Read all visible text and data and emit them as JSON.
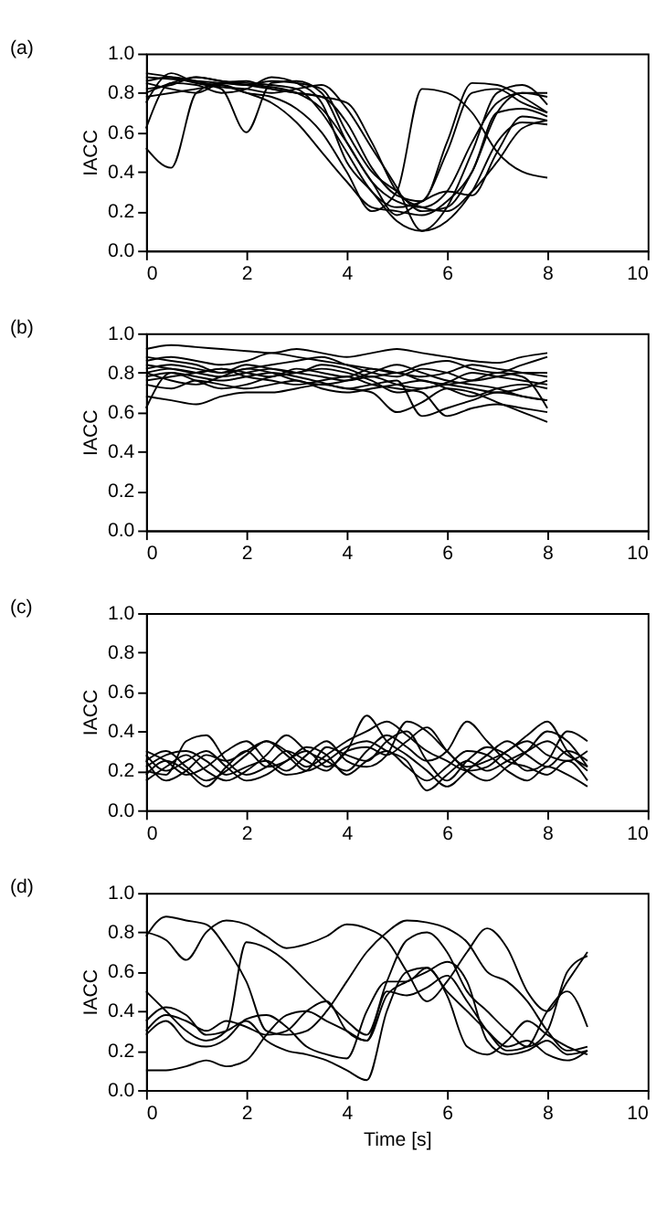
{
  "chart_data": [
    {
      "type": "line",
      "title": "(a)",
      "ylabel": "IACC",
      "xlim": [
        0,
        10
      ],
      "xticks": [
        0,
        2,
        4,
        6,
        8,
        10
      ],
      "ylim": [
        0,
        1
      ],
      "yticks": [
        {
          "value": 0,
          "label": "0.0"
        },
        {
          "value": 0.2,
          "label": "0.2"
        },
        {
          "value": 0.4,
          "label": "0.4"
        },
        {
          "value": 0.6,
          "label": "0.6"
        },
        {
          "value": 0.8,
          "label": "0.8"
        },
        {
          "value": 1,
          "label": "1.0"
        }
      ],
      "grid": false,
      "line_style": "solid",
      "x": [
        0,
        0.5,
        1,
        1.5,
        2,
        2.5,
        3,
        3.5,
        4,
        4.5,
        5,
        5.5,
        6,
        6.5,
        7,
        7.5,
        8
      ],
      "series": [
        {
          "color": "#000000",
          "values": [
            0.88,
            0.87,
            0.86,
            0.85,
            0.84,
            0.83,
            0.8,
            0.72,
            0.55,
            0.35,
            0.25,
            0.22,
            0.3,
            0.55,
            0.75,
            0.8,
            0.78
          ]
        },
        {
          "color": "#000000",
          "values": [
            0.8,
            0.85,
            0.88,
            0.86,
            0.85,
            0.84,
            0.82,
            0.7,
            0.5,
            0.3,
            0.22,
            0.25,
            0.5,
            0.8,
            0.82,
            0.75,
            0.7
          ]
        },
        {
          "color": "#000000",
          "values": [
            0.52,
            0.42,
            0.8,
            0.85,
            0.84,
            0.86,
            0.85,
            0.82,
            0.6,
            0.4,
            0.3,
            0.2,
            0.22,
            0.4,
            0.7,
            0.8,
            0.8
          ]
        },
        {
          "color": "#000000",
          "values": [
            0.75,
            0.9,
            0.85,
            0.82,
            0.6,
            0.85,
            0.86,
            0.8,
            0.55,
            0.35,
            0.18,
            0.25,
            0.3,
            0.28,
            0.5,
            0.68,
            0.66
          ]
        },
        {
          "color": "#000000",
          "values": [
            0.62,
            0.85,
            0.84,
            0.8,
            0.82,
            0.88,
            0.85,
            0.75,
            0.45,
            0.3,
            0.15,
            0.1,
            0.22,
            0.5,
            0.8,
            0.84,
            0.74
          ]
        },
        {
          "color": "#000000",
          "values": [
            0.9,
            0.88,
            0.85,
            0.84,
            0.8,
            0.78,
            0.72,
            0.6,
            0.4,
            0.2,
            0.3,
            0.82,
            0.8,
            0.7,
            0.5,
            0.4,
            0.37
          ]
        },
        {
          "color": "#000000",
          "values": [
            0.85,
            0.82,
            0.8,
            0.85,
            0.86,
            0.82,
            0.8,
            0.78,
            0.65,
            0.42,
            0.28,
            0.25,
            0.55,
            0.85,
            0.84,
            0.78,
            0.7
          ]
        },
        {
          "color": "#000000",
          "values": [
            0.78,
            0.8,
            0.82,
            0.84,
            0.8,
            0.75,
            0.65,
            0.5,
            0.35,
            0.22,
            0.2,
            0.18,
            0.25,
            0.4,
            0.7,
            0.72,
            0.68
          ]
        },
        {
          "color": "#000000",
          "values": [
            0.82,
            0.84,
            0.88,
            0.86,
            0.84,
            0.82,
            0.8,
            0.78,
            0.75,
            0.55,
            0.3,
            0.22,
            0.2,
            0.3,
            0.45,
            0.62,
            0.66
          ]
        },
        {
          "color": "#000000",
          "values": [
            0.86,
            0.88,
            0.86,
            0.83,
            0.82,
            0.8,
            0.82,
            0.84,
            0.72,
            0.52,
            0.32,
            0.1,
            0.15,
            0.3,
            0.55,
            0.65,
            0.64
          ]
        }
      ]
    },
    {
      "type": "line",
      "title": "(b)",
      "ylabel": "IACC",
      "xlim": [
        0,
        10
      ],
      "xticks": [
        0,
        2,
        4,
        6,
        8,
        10
      ],
      "ylim": [
        0,
        1
      ],
      "yticks": [
        {
          "value": 0,
          "label": "0.0"
        },
        {
          "value": 0.2,
          "label": "0.2"
        },
        {
          "value": 0.4,
          "label": "0.4"
        },
        {
          "value": 0.6,
          "label": "0.6"
        },
        {
          "value": 0.8,
          "label": "0.8"
        },
        {
          "value": 1,
          "label": "1.0"
        }
      ],
      "grid": false,
      "line_style": "solid",
      "x": [
        0,
        0.5,
        1,
        1.5,
        2,
        2.5,
        3,
        3.5,
        4,
        4.5,
        5,
        5.5,
        6,
        6.5,
        7,
        7.5,
        8
      ],
      "series": [
        {
          "color": "#000000",
          "values": [
            0.92,
            0.94,
            0.93,
            0.92,
            0.91,
            0.9,
            0.92,
            0.9,
            0.88,
            0.9,
            0.92,
            0.9,
            0.88,
            0.86,
            0.85,
            0.88,
            0.9
          ]
        },
        {
          "color": "#000000",
          "values": [
            0.8,
            0.82,
            0.8,
            0.78,
            0.8,
            0.82,
            0.8,
            0.78,
            0.76,
            0.78,
            0.74,
            0.72,
            0.75,
            0.8,
            0.78,
            0.76,
            0.74
          ]
        },
        {
          "color": "#000000",
          "values": [
            0.68,
            0.66,
            0.64,
            0.68,
            0.7,
            0.7,
            0.72,
            0.74,
            0.72,
            0.7,
            0.6,
            0.65,
            0.72,
            0.7,
            0.65,
            0.6,
            0.55
          ]
        },
        {
          "color": "#000000",
          "values": [
            0.62,
            0.8,
            0.78,
            0.76,
            0.78,
            0.8,
            0.78,
            0.75,
            0.72,
            0.74,
            0.76,
            0.58,
            0.62,
            0.66,
            0.7,
            0.68,
            0.66
          ]
        },
        {
          "color": "#000000",
          "values": [
            0.86,
            0.88,
            0.86,
            0.84,
            0.86,
            0.9,
            0.88,
            0.86,
            0.84,
            0.82,
            0.8,
            0.84,
            0.86,
            0.82,
            0.8,
            0.84,
            0.88
          ]
        },
        {
          "color": "#000000",
          "values": [
            0.76,
            0.78,
            0.8,
            0.82,
            0.78,
            0.76,
            0.74,
            0.76,
            0.78,
            0.74,
            0.72,
            0.7,
            0.58,
            0.62,
            0.64,
            0.62,
            0.6
          ]
        },
        {
          "color": "#000000",
          "values": [
            0.82,
            0.84,
            0.82,
            0.8,
            0.84,
            0.82,
            0.8,
            0.84,
            0.82,
            0.78,
            0.8,
            0.76,
            0.74,
            0.72,
            0.7,
            0.72,
            0.76
          ]
        },
        {
          "color": "#000000",
          "values": [
            0.74,
            0.72,
            0.76,
            0.74,
            0.72,
            0.74,
            0.76,
            0.72,
            0.7,
            0.72,
            0.74,
            0.76,
            0.72,
            0.68,
            0.72,
            0.74,
            0.72
          ]
        },
        {
          "color": "#000000",
          "values": [
            0.88,
            0.86,
            0.84,
            0.8,
            0.82,
            0.84,
            0.86,
            0.88,
            0.84,
            0.8,
            0.78,
            0.82,
            0.8,
            0.76,
            0.78,
            0.8,
            0.8
          ]
        },
        {
          "color": "#000000",
          "values": [
            0.78,
            0.8,
            0.76,
            0.72,
            0.74,
            0.78,
            0.8,
            0.82,
            0.8,
            0.76,
            0.7,
            0.72,
            0.74,
            0.76,
            0.8,
            0.78,
            0.62
          ]
        },
        {
          "color": "#000000",
          "values": [
            0.8,
            0.76,
            0.74,
            0.78,
            0.82,
            0.8,
            0.76,
            0.74,
            0.76,
            0.8,
            0.84,
            0.8,
            0.76,
            0.74,
            0.72,
            0.68,
            0.66
          ]
        },
        {
          "color": "#000000",
          "values": [
            0.84,
            0.82,
            0.8,
            0.82,
            0.8,
            0.78,
            0.82,
            0.8,
            0.78,
            0.82,
            0.8,
            0.78,
            0.8,
            0.84,
            0.82,
            0.8,
            0.78
          ]
        }
      ]
    },
    {
      "type": "line",
      "title": "(c)",
      "ylabel": "IACC",
      "xlim": [
        0,
        10
      ],
      "xticks": [
        0,
        2,
        4,
        6,
        8,
        10
      ],
      "ylim": [
        0,
        1
      ],
      "yticks": [
        {
          "value": 0,
          "label": "0.0"
        },
        {
          "value": 0.2,
          "label": "0.2"
        },
        {
          "value": 0.4,
          "label": "0.4"
        },
        {
          "value": 0.6,
          "label": "0.6"
        },
        {
          "value": 0.8,
          "label": "0.8"
        },
        {
          "value": 1,
          "label": "1.0"
        }
      ],
      "grid": false,
      "line_style": "solid",
      "x": [
        0,
        0.4,
        0.8,
        1.2,
        1.6,
        2,
        2.4,
        2.8,
        3.2,
        3.6,
        4,
        4.4,
        4.8,
        5.2,
        5.6,
        6,
        6.4,
        6.8,
        7.2,
        7.6,
        8,
        8.4,
        8.8
      ],
      "series": [
        {
          "color": "#000000",
          "values": [
            0.25,
            0.3,
            0.22,
            0.15,
            0.2,
            0.28,
            0.35,
            0.3,
            0.22,
            0.28,
            0.35,
            0.4,
            0.45,
            0.38,
            0.3,
            0.25,
            0.2,
            0.22,
            0.3,
            0.35,
            0.28,
            0.25,
            0.3
          ]
        },
        {
          "color": "#000000",
          "values": [
            0.2,
            0.18,
            0.35,
            0.38,
            0.25,
            0.18,
            0.22,
            0.3,
            0.25,
            0.2,
            0.3,
            0.32,
            0.28,
            0.35,
            0.42,
            0.3,
            0.2,
            0.15,
            0.22,
            0.3,
            0.4,
            0.35,
            0.22
          ]
        },
        {
          "color": "#000000",
          "values": [
            0.3,
            0.25,
            0.18,
            0.22,
            0.3,
            0.35,
            0.25,
            0.18,
            0.2,
            0.32,
            0.28,
            0.25,
            0.35,
            0.4,
            0.25,
            0.15,
            0.25,
            0.32,
            0.28,
            0.2,
            0.25,
            0.4,
            0.35
          ]
        },
        {
          "color": "#000000",
          "values": [
            0.15,
            0.22,
            0.28,
            0.2,
            0.15,
            0.2,
            0.28,
            0.38,
            0.3,
            0.25,
            0.2,
            0.3,
            0.38,
            0.32,
            0.25,
            0.3,
            0.45,
            0.35,
            0.25,
            0.22,
            0.18,
            0.25,
            0.15
          ]
        },
        {
          "color": "#000000",
          "values": [
            0.28,
            0.2,
            0.25,
            0.3,
            0.22,
            0.15,
            0.18,
            0.25,
            0.3,
            0.22,
            0.3,
            0.48,
            0.35,
            0.28,
            0.2,
            0.12,
            0.2,
            0.28,
            0.35,
            0.28,
            0.22,
            0.3,
            0.25
          ]
        },
        {
          "color": "#000000",
          "values": [
            0.22,
            0.28,
            0.3,
            0.25,
            0.18,
            0.22,
            0.25,
            0.2,
            0.28,
            0.35,
            0.25,
            0.22,
            0.28,
            0.45,
            0.4,
            0.3,
            0.22,
            0.25,
            0.3,
            0.38,
            0.45,
            0.3,
            0.2
          ]
        },
        {
          "color": "#000000",
          "values": [
            0.18,
            0.25,
            0.2,
            0.12,
            0.22,
            0.3,
            0.22,
            0.25,
            0.32,
            0.28,
            0.18,
            0.25,
            0.3,
            0.22,
            0.15,
            0.22,
            0.3,
            0.28,
            0.2,
            0.15,
            0.22,
            0.18,
            0.12
          ]
        },
        {
          "color": "#000000",
          "values": [
            0.25,
            0.15,
            0.2,
            0.28,
            0.25,
            0.3,
            0.35,
            0.28,
            0.2,
            0.25,
            0.32,
            0.35,
            0.3,
            0.25,
            0.1,
            0.18,
            0.25,
            0.2,
            0.25,
            0.3,
            0.35,
            0.28,
            0.22
          ]
        }
      ]
    },
    {
      "type": "line",
      "title": "(d)",
      "ylabel": "IACC",
      "xlabel": "Time [s]",
      "xlim": [
        0,
        10
      ],
      "xticks": [
        0,
        2,
        4,
        6,
        8,
        10
      ],
      "ylim": [
        0,
        1
      ],
      "yticks": [
        {
          "value": 0,
          "label": "0.0"
        },
        {
          "value": 0.2,
          "label": "0.2"
        },
        {
          "value": 0.4,
          "label": "0.4"
        },
        {
          "value": 0.6,
          "label": "0.6"
        },
        {
          "value": 0.8,
          "label": "0.8"
        },
        {
          "value": 1,
          "label": "1.0"
        }
      ],
      "grid": false,
      "line_style": "solid",
      "x": [
        0,
        0.4,
        0.8,
        1.2,
        1.6,
        2,
        2.4,
        2.8,
        3.2,
        3.6,
        4,
        4.4,
        4.8,
        5.2,
        5.6,
        6,
        6.4,
        6.8,
        7.2,
        7.6,
        8,
        8.4,
        8.8
      ],
      "series": [
        {
          "color": "#000000",
          "values": [
            0.78,
            0.88,
            0.86,
            0.84,
            0.72,
            0.55,
            0.3,
            0.28,
            0.3,
            0.4,
            0.55,
            0.7,
            0.8,
            0.86,
            0.85,
            0.82,
            0.75,
            0.6,
            0.55,
            0.45,
            0.3,
            0.2,
            0.22
          ]
        },
        {
          "color": "#000000",
          "values": [
            0.8,
            0.76,
            0.66,
            0.8,
            0.86,
            0.84,
            0.78,
            0.72,
            0.74,
            0.78,
            0.84,
            0.82,
            0.76,
            0.6,
            0.45,
            0.55,
            0.7,
            0.82,
            0.72,
            0.5,
            0.4,
            0.55,
            0.7
          ]
        },
        {
          "color": "#000000",
          "values": [
            0.5,
            0.4,
            0.3,
            0.25,
            0.3,
            0.75,
            0.72,
            0.65,
            0.55,
            0.45,
            0.35,
            0.28,
            0.55,
            0.76,
            0.8,
            0.7,
            0.5,
            0.4,
            0.3,
            0.22,
            0.3,
            0.6,
            0.68
          ]
        },
        {
          "color": "#000000",
          "values": [
            0.3,
            0.38,
            0.35,
            0.3,
            0.35,
            0.32,
            0.28,
            0.3,
            0.4,
            0.45,
            0.3,
            0.25,
            0.48,
            0.55,
            0.6,
            0.65,
            0.55,
            0.25,
            0.18,
            0.2,
            0.25,
            0.18,
            0.2
          ]
        },
        {
          "color": "#000000",
          "values": [
            0.35,
            0.42,
            0.38,
            0.28,
            0.3,
            0.35,
            0.25,
            0.2,
            0.18,
            0.15,
            0.1,
            0.05,
            0.4,
            0.6,
            0.62,
            0.5,
            0.4,
            0.3,
            0.22,
            0.25,
            0.18,
            0.15,
            0.2
          ]
        },
        {
          "color": "#000000",
          "values": [
            0.1,
            0.1,
            0.12,
            0.15,
            0.12,
            0.15,
            0.28,
            0.38,
            0.4,
            0.35,
            0.3,
            0.25,
            0.5,
            0.48,
            0.52,
            0.58,
            0.45,
            0.3,
            0.2,
            0.22,
            0.4,
            0.5,
            0.32
          ]
        },
        {
          "color": "#000000",
          "values": [
            0.28,
            0.35,
            0.25,
            0.22,
            0.26,
            0.36,
            0.38,
            0.32,
            0.22,
            0.18,
            0.16,
            0.4,
            0.55,
            0.55,
            0.62,
            0.48,
            0.22,
            0.18,
            0.25,
            0.35,
            0.28,
            0.22,
            0.18
          ]
        }
      ]
    }
  ]
}
